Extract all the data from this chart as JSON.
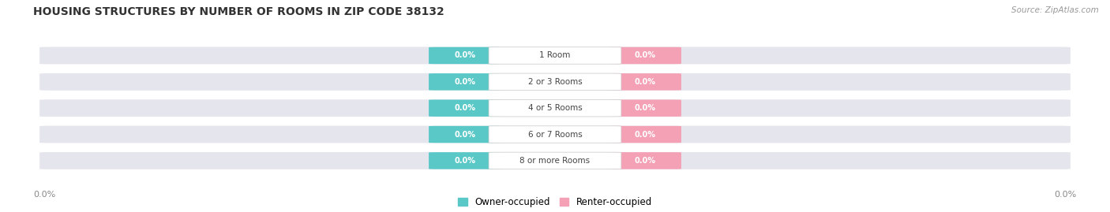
{
  "title": "HOUSING STRUCTURES BY NUMBER OF ROOMS IN ZIP CODE 38132",
  "source": "Source: ZipAtlas.com",
  "categories": [
    "1 Room",
    "2 or 3 Rooms",
    "4 or 5 Rooms",
    "6 or 7 Rooms",
    "8 or more Rooms"
  ],
  "owner_values": [
    0.0,
    0.0,
    0.0,
    0.0,
    0.0
  ],
  "renter_values": [
    0.0,
    0.0,
    0.0,
    0.0,
    0.0
  ],
  "owner_color": "#5bc8c8",
  "renter_color": "#f4a0b5",
  "bar_bg_color": "#e5e5ed",
  "center_label_color": "#444444",
  "title_fontsize": 10,
  "source_fontsize": 7.5,
  "legend_owner": "Owner-occupied",
  "legend_renter": "Renter-occupied",
  "axis_label_left": "0.0%",
  "axis_label_right": "0.0%"
}
